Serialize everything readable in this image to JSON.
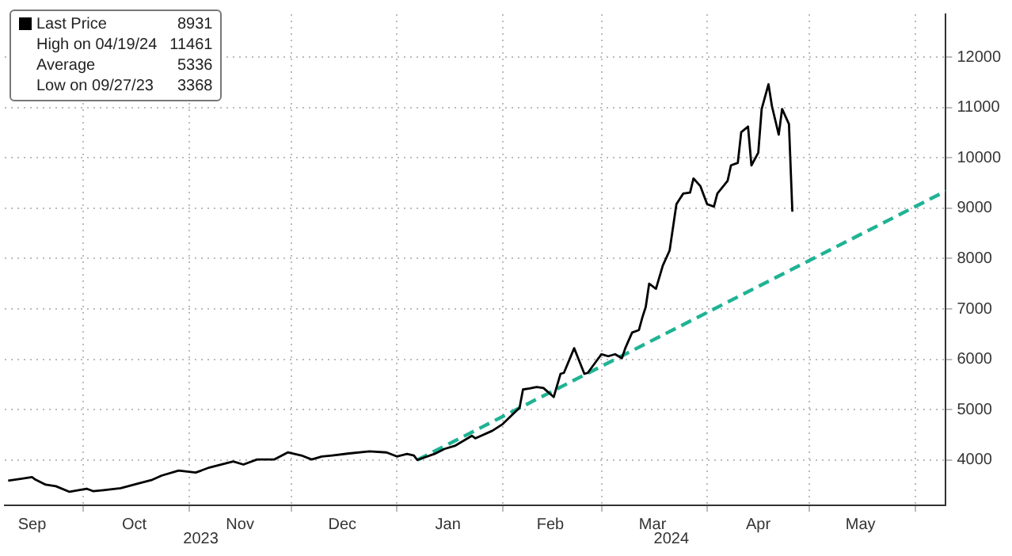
{
  "chart_data": {
    "type": "line",
    "x": [
      "2023-09-09",
      "2023-09-13",
      "2023-09-16",
      "2023-09-17",
      "2023-09-20",
      "2023-09-23",
      "2023-09-27",
      "2023-10-02",
      "2023-10-04",
      "2023-10-07",
      "2023-10-12",
      "2023-10-17",
      "2023-10-21",
      "2023-10-24",
      "2023-10-29",
      "2023-11-03",
      "2023-11-07",
      "2023-11-14",
      "2023-11-17",
      "2023-11-21",
      "2023-11-26",
      "2023-11-30",
      "2023-12-04",
      "2023-12-07",
      "2023-12-10",
      "2023-12-13",
      "2023-12-18",
      "2023-12-24",
      "2023-12-29",
      "2024-01-01",
      "2024-01-04",
      "2024-01-06",
      "2024-01-07",
      "2024-01-12",
      "2024-01-15",
      "2024-01-18",
      "2024-01-23",
      "2024-01-24",
      "2024-01-29",
      "2024-02-01",
      "2024-02-06",
      "2024-02-07",
      "2024-02-09",
      "2024-02-11",
      "2024-02-13",
      "2024-02-16",
      "2024-02-18",
      "2024-02-19",
      "2024-02-22",
      "2024-02-25",
      "2024-02-26",
      "2024-03-01",
      "2024-03-03",
      "2024-03-05",
      "2024-03-07",
      "2024-03-08",
      "2024-03-10",
      "2024-03-12",
      "2024-03-13",
      "2024-03-14",
      "2024-03-15",
      "2024-03-17",
      "2024-03-19",
      "2024-03-21",
      "2024-03-23",
      "2024-03-25",
      "2024-03-27",
      "2024-03-28",
      "2024-03-30",
      "2024-04-01",
      "2024-04-03",
      "2024-04-04",
      "2024-04-07",
      "2024-04-08",
      "2024-04-10",
      "2024-04-11",
      "2024-04-13",
      "2024-04-14",
      "2024-04-16",
      "2024-04-17",
      "2024-04-19",
      "2024-04-20",
      "2024-04-22",
      "2024-04-23",
      "2024-04-25",
      "2024-04-26"
    ],
    "series": [
      {
        "name": "Last Price",
        "color": "#000000",
        "values": [
          3590,
          3630,
          3660,
          3610,
          3510,
          3480,
          3368,
          3430,
          3380,
          3400,
          3440,
          3530,
          3600,
          3690,
          3790,
          3750,
          3850,
          3970,
          3910,
          4010,
          4010,
          4150,
          4090,
          4010,
          4070,
          4090,
          4130,
          4170,
          4150,
          4070,
          4120,
          4090,
          4000,
          4120,
          4220,
          4280,
          4480,
          4430,
          4580,
          4710,
          5040,
          5400,
          5420,
          5450,
          5430,
          5250,
          5710,
          5730,
          6220,
          5710,
          5730,
          6100,
          6060,
          6100,
          6020,
          6220,
          6530,
          6580,
          6830,
          7040,
          7500,
          7400,
          7860,
          8160,
          9080,
          9290,
          9310,
          9590,
          9440,
          9080,
          9030,
          9290,
          9540,
          9850,
          9900,
          10510,
          10620,
          9850,
          10100,
          10970,
          11461,
          11030,
          10460,
          10970,
          10670,
          8931
        ]
      },
      {
        "type": "line",
        "color": "#1fb394",
        "line_style": "dashed",
        "x": [
          "2024-01-07",
          "2024-06-10"
        ],
        "values": [
          4000,
          9340
        ]
      }
    ],
    "marker": "none",
    "line_style": "solid",
    "grid": true,
    "legend": "top left",
    "xlim": [
      "2023-09-08",
      "2024-06-10"
    ],
    "xticks": [
      {
        "value": "2023-09-16",
        "label": "Sep"
      },
      {
        "value": "2023-10-01",
        "label": null
      },
      {
        "value": "2023-10-16",
        "label": "Oct"
      },
      {
        "value": "2023-11-01",
        "label": null
      },
      {
        "value": "2023-11-16",
        "label": "Nov"
      },
      {
        "value": "2023-12-01",
        "label": null
      },
      {
        "value": "2023-12-16",
        "label": "Dec"
      },
      {
        "value": "2024-01-01",
        "label": null
      },
      {
        "value": "2024-01-16",
        "label": "Jan"
      },
      {
        "value": "2024-02-01",
        "label": null
      },
      {
        "value": "2024-02-15",
        "label": "Feb"
      },
      {
        "value": "2024-03-01",
        "label": null
      },
      {
        "value": "2024-03-16",
        "label": "Mar"
      },
      {
        "value": "2024-04-01",
        "label": null
      },
      {
        "value": "2024-04-16",
        "label": "Apr"
      },
      {
        "value": "2024-05-01",
        "label": null
      },
      {
        "value": "2024-05-16",
        "label": "May"
      },
      {
        "value": "2024-06-01",
        "label": null
      }
    ],
    "ylim": [
      3100,
      12850
    ],
    "yticks": [
      4000,
      5000,
      6000,
      7000,
      8000,
      9000,
      10000,
      11000,
      12000
    ],
    "annotations": [
      "8931",
      "High on 04/19/24 11461",
      "Average 5336",
      "Low on 09/27/23 3368",
      "2023",
      "2024"
    ]
  }
}
